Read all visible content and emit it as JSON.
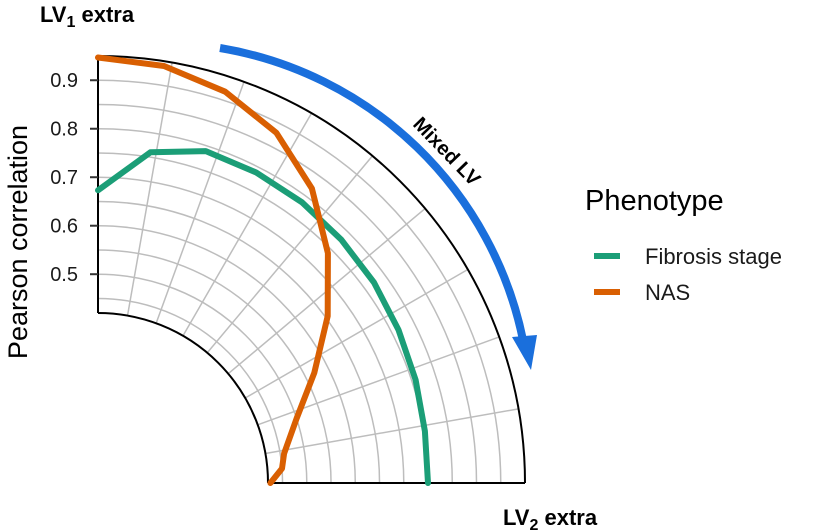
{
  "chart_data": {
    "type": "line",
    "coordinate_system": "polar-quarter",
    "ylabel": "Pearson correlation",
    "ylim": [
      0.42,
      0.95
    ],
    "r_ticks": [
      0.5,
      0.6,
      0.7,
      0.8,
      0.9
    ],
    "r_tick_labels": [
      "0.5",
      "0.6",
      "0.7",
      "0.8",
      "0.9"
    ],
    "angle_axis": {
      "start_label": "LV",
      "start_subscript": "1",
      "start_suffix": " extra",
      "end_label": "LV",
      "end_subscript": "2",
      "end_suffix": " extra",
      "range": [
        0,
        1
      ]
    },
    "annotation": "Mixed LV",
    "legend": {
      "title": "Phenotype",
      "placement": "right"
    },
    "grid": true,
    "series": [
      {
        "name": "Fibrosis stage",
        "color": "#1b9e77",
        "x": [
          0.0,
          0.1,
          0.2,
          0.3,
          0.4,
          0.5,
          0.6,
          0.7,
          0.8,
          0.9,
          1.0
        ],
        "y": [
          0.673,
          0.76,
          0.789,
          0.788,
          0.785,
          0.779,
          0.773,
          0.765,
          0.758,
          0.752,
          0.75
        ]
      },
      {
        "name": "NAS",
        "color": "#d95f02",
        "x": [
          0.0,
          0.1,
          0.2,
          0.3,
          0.4,
          0.5,
          0.6,
          0.7,
          0.8,
          0.9,
          0.95,
          1.0
        ],
        "y": [
          0.947,
          0.94,
          0.918,
          0.88,
          0.82,
          0.74,
          0.655,
          0.57,
          0.5,
          0.458,
          0.45,
          0.425
        ]
      }
    ]
  }
}
